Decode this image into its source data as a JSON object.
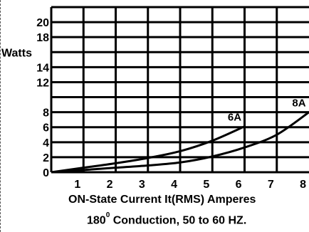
{
  "chart_data": {
    "type": "line",
    "x_ticks": [
      1,
      2,
      3,
      4,
      5,
      6,
      7,
      8
    ],
    "y_ticks": [
      0,
      2,
      4,
      6,
      8,
      12,
      14,
      18,
      20
    ],
    "xlim": [
      0,
      8
    ],
    "ylim": [
      0,
      22
    ],
    "grid": true,
    "ylabel": "Watts",
    "xlabel": "ON-State Current  It(RMS) Amperes",
    "caption_pre": "180",
    "caption_sup": "0",
    "caption_post": " Conduction,  50 to 60 HZ.",
    "series": [
      {
        "name": "6A",
        "x": [
          0,
          1,
          2,
          3,
          4,
          5,
          6
        ],
        "y": [
          0,
          0.6,
          1.2,
          1.9,
          2.8,
          4.2,
          6.1
        ]
      },
      {
        "name": "8A",
        "x": [
          0,
          1,
          2,
          3,
          4,
          5,
          6,
          7,
          8
        ],
        "y": [
          0,
          0.3,
          0.6,
          0.9,
          1.3,
          2.1,
          3.3,
          5.0,
          8.0
        ]
      }
    ]
  }
}
